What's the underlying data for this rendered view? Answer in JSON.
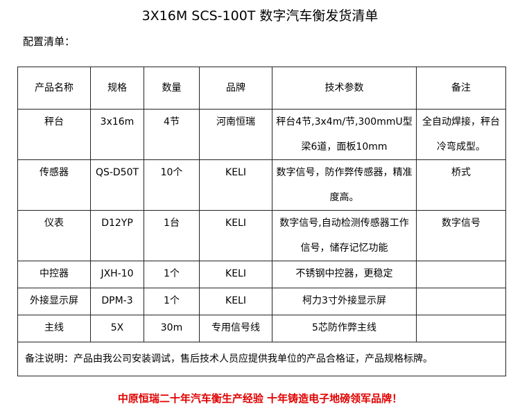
{
  "title": "3X16M SCS-100T 数字汽车衡发货清单",
  "subtitle": "配置清单：",
  "headers": [
    "产品名称",
    "规格",
    "数量",
    "品牌",
    "技术参数",
    "备注"
  ],
  "rows": [
    [
      "秤台",
      "3x16m",
      "4节",
      "河南恒瑞",
      "秤台4节,3x4m/节,300mmU型梁6道，面板10mm",
      "全自动焊接，秤台冷弯成型。"
    ],
    [
      "传感器",
      "QS-D50T",
      "10个",
      "KELI",
      "数字信号，防作弊传感器，精准度高。",
      "桥式"
    ],
    [
      "仪表",
      "D12YP",
      "1台",
      "KELI",
      "数字信号,自动检测传感器工作信号，储存记忆功能",
      "数字信号"
    ],
    [
      "中控器",
      "JXH-10",
      "1个",
      "KELI",
      "不锈钢中控器，更稳定",
      ""
    ],
    [
      "外接显示屏",
      "DPM-3",
      "1个",
      "KELI",
      "柯力3寸外接显示屏",
      ""
    ],
    [
      "主线",
      "5X",
      "30m",
      "专用信号线",
      "5芯防作弊主线",
      ""
    ]
  ],
  "note": "备注说明：产品由我公司安装调试，售后技术人员应提供我单位的产品合格证，产品规格标牌。",
  "footer": "中原恒瑞二十年汽车衡生产经验 十年铸造电子地磅领军品牌！",
  "colors": {
    "footer": "#e00000"
  }
}
